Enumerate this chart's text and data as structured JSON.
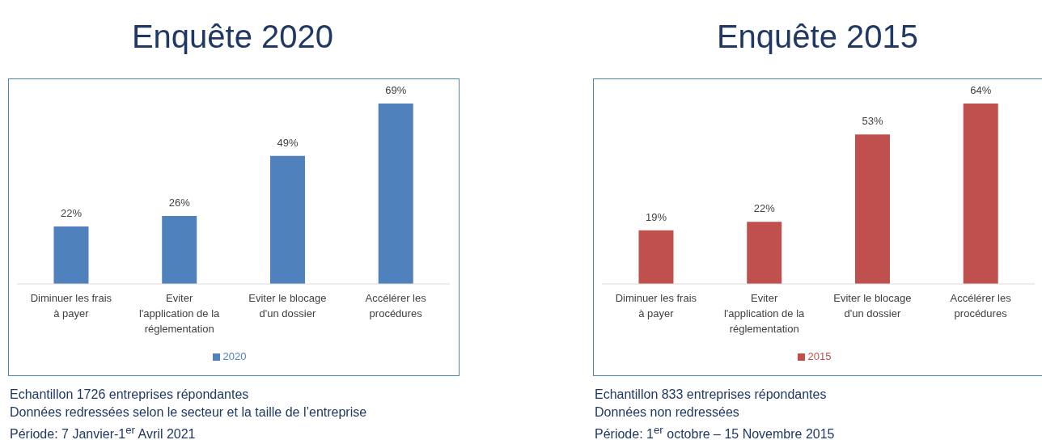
{
  "chart_data": [
    {
      "type": "bar",
      "title": "Enquête 2020",
      "categories": [
        "Diminuer les frais à payer",
        "Eviter l'application de la réglementation",
        "Eviter le blocage d'un dossier",
        "Accélérer les procédures"
      ],
      "series": [
        {
          "name": "2020",
          "color": "#4f81bd",
          "values": [
            22,
            26,
            49,
            69
          ],
          "value_labels": [
            "22%",
            "26%",
            "49%",
            "69%"
          ]
        }
      ],
      "legend": "bottom",
      "annotations": [
        "Echantillon 1726 entreprises répondantes",
        "Données redressées selon le secteur et la taille de l’entreprise",
        "Période: 7 Janvier-1$^{er}$ Avril 2021"
      ]
    },
    {
      "type": "bar",
      "title": "Enquête 2015",
      "categories": [
        "Diminuer les frais à payer",
        "Eviter l'application de la réglementation",
        "Eviter le blocage d'un dossier",
        "Accélérer les procédures"
      ],
      "series": [
        {
          "name": "2015",
          "color": "#c0504d",
          "values": [
            19,
            22,
            53,
            64
          ],
          "value_labels": [
            "19%",
            "22%",
            "53%",
            "64%"
          ]
        }
      ],
      "legend": "bottom",
      "annotations": [
        "Echantillon 833 entreprises répondantes",
        "Données non redressées",
        "Période: 1$^{er}$ octobre – 15 Novembre 2015"
      ]
    }
  ]
}
